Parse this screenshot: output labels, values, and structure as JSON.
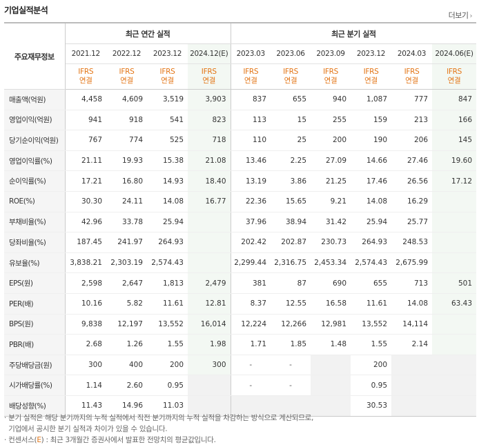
{
  "title": "기업실적분석",
  "more_label": "더보기",
  "corner_label": "주요재무정보",
  "group_annual": "최근 연간 실적",
  "group_quarter": "최근 분기 실적",
  "periods": [
    "2021.12",
    "2022.12",
    "2023.12",
    "2024.12(E)",
    "2023.03",
    "2023.06",
    "2023.09",
    "2023.12",
    "2024.03",
    "2024.06(E)"
  ],
  "std_top": "IFRS",
  "std_bottom": "연결",
  "rows": [
    {
      "label": "매출액(억원)",
      "v": [
        "4,458",
        "4,609",
        "3,519",
        "3,903",
        "837",
        "655",
        "940",
        "1,087",
        "777",
        "847"
      ]
    },
    {
      "label": "영업이익(억원)",
      "v": [
        "941",
        "918",
        "541",
        "823",
        "113",
        "15",
        "255",
        "159",
        "213",
        "166"
      ]
    },
    {
      "label": "당기순이익(억원)",
      "v": [
        "767",
        "774",
        "525",
        "718",
        "110",
        "25",
        "200",
        "190",
        "206",
        "145"
      ]
    },
    {
      "label": "영업이익률(%)",
      "v": [
        "21.11",
        "19.93",
        "15.38",
        "21.08",
        "13.46",
        "2.25",
        "27.09",
        "14.66",
        "27.46",
        "19.60"
      ]
    },
    {
      "label": "순이익률(%)",
      "v": [
        "17.21",
        "16.80",
        "14.93",
        "18.40",
        "13.19",
        "3.86",
        "21.25",
        "17.46",
        "26.56",
        "17.12"
      ]
    },
    {
      "label": "ROE(%)",
      "v": [
        "30.30",
        "24.11",
        "14.08",
        "16.77",
        "22.36",
        "15.65",
        "9.21",
        "14.08",
        "16.29",
        ""
      ]
    },
    {
      "label": "부채비율(%)",
      "v": [
        "42.96",
        "33.78",
        "25.94",
        "",
        "37.96",
        "38.94",
        "31.42",
        "25.94",
        "25.77",
        ""
      ]
    },
    {
      "label": "당좌비율(%)",
      "v": [
        "187.45",
        "241.97",
        "264.93",
        "",
        "202.42",
        "202.87",
        "230.73",
        "264.93",
        "248.53",
        ""
      ]
    },
    {
      "label": "유보율(%)",
      "v": [
        "3,838.21",
        "2,303.19",
        "2,574.43",
        "",
        "2,299.44",
        "2,316.75",
        "2,453.34",
        "2,574.43",
        "2,675.99",
        ""
      ]
    },
    {
      "label": "EPS(원)",
      "v": [
        "2,598",
        "2,647",
        "1,813",
        "2,479",
        "381",
        "87",
        "690",
        "655",
        "713",
        "501"
      ]
    },
    {
      "label": "PER(배)",
      "v": [
        "10.16",
        "5.82",
        "11.61",
        "12.81",
        "8.37",
        "12.55",
        "16.58",
        "11.61",
        "14.08",
        "63.43"
      ]
    },
    {
      "label": "BPS(원)",
      "v": [
        "9,838",
        "12,197",
        "13,552",
        "16,014",
        "12,224",
        "12,266",
        "12,981",
        "13,552",
        "14,114",
        ""
      ]
    },
    {
      "label": "PBR(배)",
      "v": [
        "2.68",
        "1.26",
        "1.55",
        "1.98",
        "1.71",
        "1.85",
        "1.48",
        "1.55",
        "2.14",
        ""
      ]
    },
    {
      "label": "주당배당금(원)",
      "v": [
        "300",
        "400",
        "200",
        "300",
        "-",
        "-",
        "",
        "200",
        "",
        ""
      ]
    },
    {
      "label": "시가배당률(%)",
      "v": [
        "1.14",
        "2.60",
        "0.95",
        "",
        "-",
        "-",
        "",
        "0.95",
        "",
        ""
      ]
    },
    {
      "label": "배당성향(%)",
      "v": [
        "11.43",
        "14.96",
        "11.03",
        "",
        "",
        "",
        "",
        "30.53",
        "",
        ""
      ]
    }
  ],
  "notes": [
    "분기 실적은 해당 분기까지의 누적 실적에서 직전 분기까지의 누적 실적을 차감하는 방식으로 계산되므로,",
    "기업에서 공시한 분기 실적과 차이가 있을 수 있습니다.",
    "컨센서스(E) : 최근 3개월간 증권사에서 발표한 전망치의 평균값입니다."
  ]
}
